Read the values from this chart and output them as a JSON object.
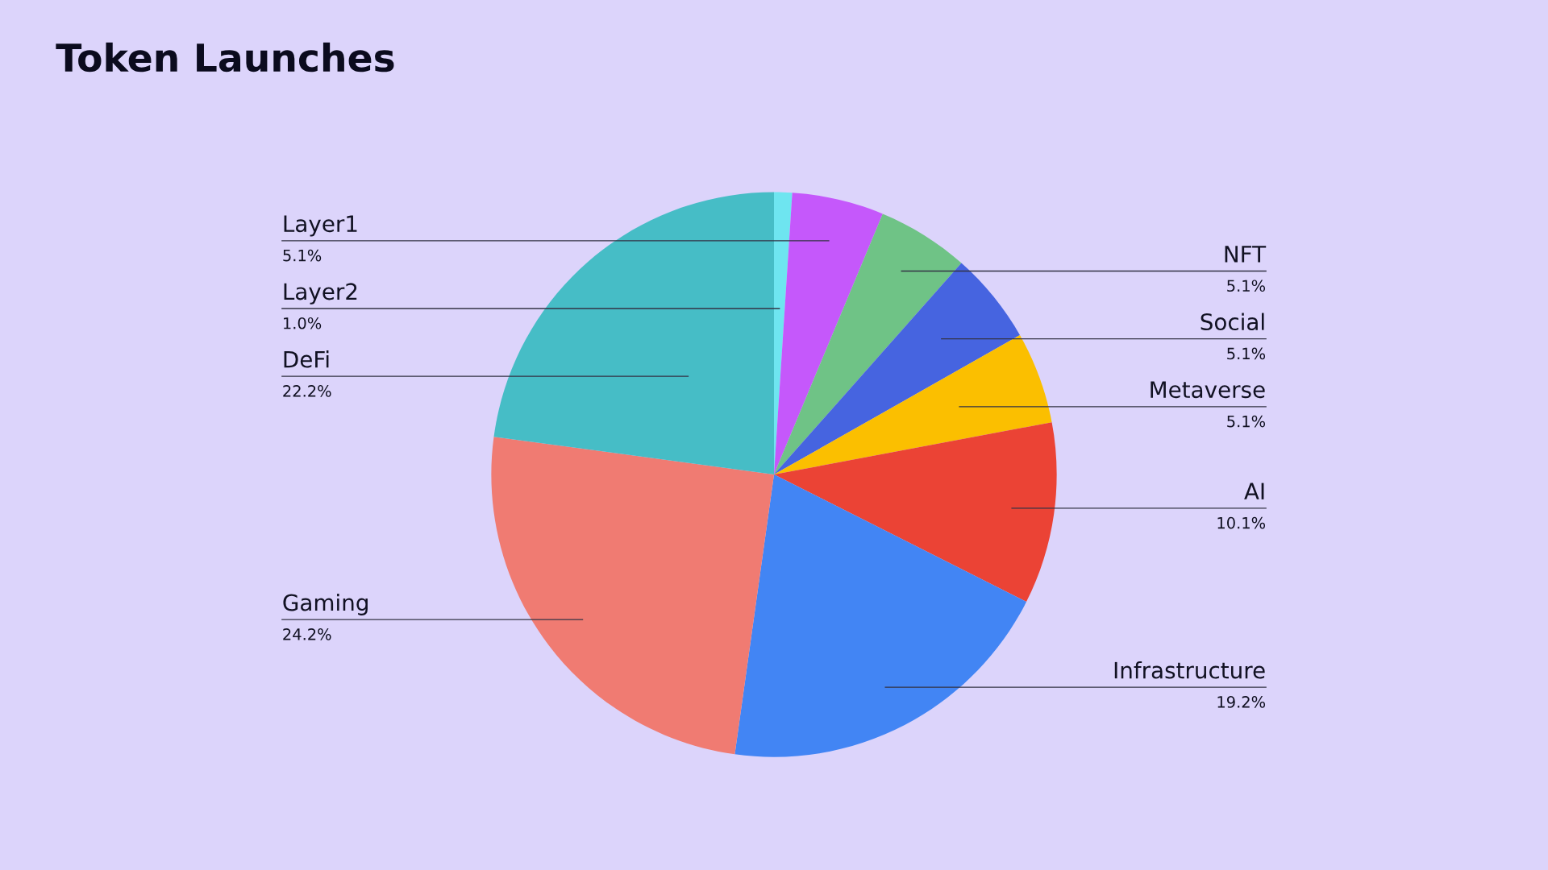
{
  "chart_data": {
    "type": "pie",
    "title": "Token Launches",
    "categories": [
      "Layer2",
      "Layer1",
      "NFT",
      "Social",
      "Metaverse",
      "AI",
      "Infrastructure",
      "Gaming",
      "DeFi"
    ],
    "values": [
      1.0,
      5.1,
      5.1,
      5.1,
      5.1,
      10.1,
      19.2,
      24.2,
      22.2
    ],
    "value_labels": [
      "1.0%",
      "5.1%",
      "5.1%",
      "5.1%",
      "5.1%",
      "10.1%",
      "19.2%",
      "24.2%",
      "22.2%"
    ],
    "colors": [
      "#6ee5f0",
      "#c558fb",
      "#6fc386",
      "#4664e0",
      "#fbbf00",
      "#eb4335",
      "#4285f4",
      "#f07b72",
      "#46bdc6"
    ],
    "legend": false
  }
}
